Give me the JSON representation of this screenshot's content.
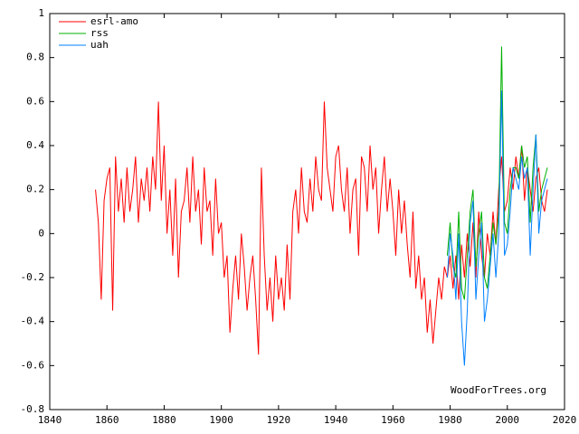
{
  "chart_data": {
    "type": "line",
    "watermark": "WoodForTrees.org",
    "legend": "top-left",
    "xlim": [
      1840,
      2020
    ],
    "xticks": [
      1840,
      1860,
      1880,
      1900,
      1920,
      1940,
      1960,
      1980,
      2000,
      2020
    ],
    "ylim": [
      -0.8,
      1
    ],
    "yticks": [
      -0.8,
      -0.6,
      -0.4,
      -0.2,
      0,
      0.2,
      0.4,
      0.6,
      0.8,
      1
    ],
    "series": [
      {
        "name": "esrl-amo",
        "color": "#ff0000",
        "x": [
          1856,
          1857,
          1858,
          1859,
          1860,
          1861,
          1862,
          1863,
          1864,
          1865,
          1866,
          1867,
          1868,
          1869,
          1870,
          1871,
          1872,
          1873,
          1874,
          1875,
          1876,
          1877,
          1878,
          1879,
          1880,
          1881,
          1882,
          1883,
          1884,
          1885,
          1886,
          1887,
          1888,
          1889,
          1890,
          1891,
          1892,
          1893,
          1894,
          1895,
          1896,
          1897,
          1898,
          1899,
          1900,
          1901,
          1902,
          1903,
          1904,
          1905,
          1906,
          1907,
          1908,
          1909,
          1910,
          1911,
          1912,
          1913,
          1914,
          1915,
          1916,
          1917,
          1918,
          1919,
          1920,
          1921,
          1922,
          1923,
          1924,
          1925,
          1926,
          1927,
          1928,
          1929,
          1930,
          1931,
          1932,
          1933,
          1934,
          1935,
          1936,
          1937,
          1938,
          1939,
          1940,
          1941,
          1942,
          1943,
          1944,
          1945,
          1946,
          1947,
          1948,
          1949,
          1950,
          1951,
          1952,
          1953,
          1954,
          1955,
          1956,
          1957,
          1958,
          1959,
          1960,
          1961,
          1962,
          1963,
          1964,
          1965,
          1966,
          1967,
          1968,
          1969,
          1970,
          1971,
          1972,
          1973,
          1974,
          1975,
          1976,
          1977,
          1978,
          1979,
          1980,
          1981,
          1982,
          1983,
          1984,
          1985,
          1986,
          1987,
          1988,
          1989,
          1990,
          1991,
          1992,
          1993,
          1994,
          1995,
          1996,
          1997,
          1998,
          1999,
          2000,
          2001,
          2002,
          2003,
          2004,
          2005,
          2006,
          2007,
          2008,
          2009,
          2010,
          2011,
          2012,
          2013,
          2014
        ],
        "values": [
          0.2,
          0.05,
          -0.3,
          0.15,
          0.25,
          0.3,
          -0.35,
          0.35,
          0.1,
          0.25,
          0.05,
          0.3,
          0.1,
          0.2,
          0.35,
          0.05,
          0.25,
          0.15,
          0.3,
          0.1,
          0.35,
          0.2,
          0.6,
          0.15,
          0.4,
          0.0,
          0.2,
          -0.1,
          0.25,
          -0.2,
          0.1,
          0.15,
          0.3,
          0.05,
          0.35,
          0.1,
          0.2,
          -0.05,
          0.3,
          0.1,
          0.15,
          -0.1,
          0.25,
          0.0,
          0.05,
          -0.2,
          -0.1,
          -0.45,
          -0.25,
          -0.1,
          -0.3,
          0.0,
          -0.15,
          -0.35,
          -0.2,
          -0.1,
          -0.3,
          -0.55,
          0.3,
          -0.1,
          -0.35,
          -0.2,
          -0.4,
          -0.1,
          -0.3,
          -0.2,
          -0.35,
          -0.05,
          -0.3,
          0.1,
          0.2,
          0.0,
          0.3,
          0.1,
          0.05,
          0.25,
          0.1,
          0.35,
          0.2,
          0.15,
          0.6,
          0.3,
          0.2,
          0.1,
          0.35,
          0.4,
          0.2,
          0.1,
          0.3,
          0.0,
          0.2,
          0.25,
          -0.1,
          0.35,
          0.3,
          0.1,
          0.4,
          0.2,
          0.3,
          0.0,
          0.2,
          0.35,
          0.1,
          0.25,
          0.1,
          -0.1,
          0.2,
          0.0,
          0.15,
          -0.05,
          -0.2,
          0.1,
          -0.25,
          -0.1,
          -0.3,
          -0.2,
          -0.45,
          -0.3,
          -0.5,
          -0.35,
          -0.2,
          -0.3,
          -0.15,
          -0.2,
          -0.1,
          -0.25,
          -0.1,
          -0.3,
          -0.05,
          -0.2,
          0.0,
          -0.15,
          0.05,
          -0.2,
          0.1,
          -0.1,
          -0.2,
          0.0,
          -0.1,
          0.1,
          -0.05,
          0.2,
          0.35,
          0.1,
          0.15,
          0.3,
          0.2,
          0.35,
          0.25,
          0.4,
          0.15,
          0.3,
          0.2,
          0.1,
          0.25,
          0.3,
          0.15,
          0.1,
          0.2
        ]
      },
      {
        "name": "rss",
        "color": "#00b000",
        "x": [
          1979,
          1980,
          1981,
          1982,
          1983,
          1984,
          1985,
          1986,
          1987,
          1988,
          1989,
          1990,
          1991,
          1992,
          1993,
          1994,
          1995,
          1996,
          1997,
          1998,
          1999,
          2000,
          2001,
          2002,
          2003,
          2004,
          2005,
          2006,
          2007,
          2008,
          2009,
          2010,
          2011,
          2012,
          2013,
          2014
        ],
        "values": [
          -0.1,
          0.05,
          -0.15,
          -0.2,
          0.1,
          -0.25,
          -0.3,
          -0.1,
          0.1,
          0.2,
          -0.15,
          0.0,
          0.1,
          -0.2,
          -0.25,
          -0.1,
          0.05,
          -0.05,
          0.1,
          0.85,
          0.05,
          0.0,
          0.2,
          0.3,
          0.3,
          0.25,
          0.4,
          0.3,
          0.35,
          0.05,
          0.3,
          0.45,
          0.1,
          0.2,
          0.25,
          0.3
        ]
      },
      {
        "name": "uah",
        "color": "#0080ff",
        "x": [
          1979,
          1980,
          1981,
          1982,
          1983,
          1984,
          1985,
          1986,
          1987,
          1988,
          1989,
          1990,
          1991,
          1992,
          1993,
          1994,
          1995,
          1996,
          1997,
          1998,
          1999,
          2000,
          2001,
          2002,
          2003,
          2004,
          2005,
          2006,
          2007,
          2008,
          2009,
          2010,
          2011,
          2012,
          2013,
          2014
        ],
        "values": [
          -0.2,
          0.0,
          -0.1,
          -0.3,
          0.0,
          -0.4,
          -0.6,
          -0.35,
          0.05,
          0.15,
          -0.3,
          -0.1,
          0.05,
          -0.4,
          -0.3,
          -0.15,
          0.0,
          -0.2,
          0.0,
          0.65,
          -0.1,
          -0.05,
          0.1,
          0.3,
          0.25,
          0.2,
          0.35,
          0.25,
          0.3,
          -0.1,
          0.2,
          0.45,
          0.0,
          0.15,
          0.2,
          0.25
        ]
      }
    ]
  }
}
